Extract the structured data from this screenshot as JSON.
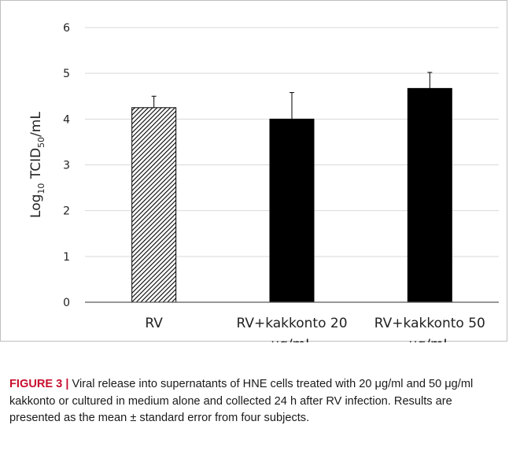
{
  "chart_data": {
    "type": "bar",
    "categories": [
      [
        "RV"
      ],
      [
        "RV+kakkonto 20",
        "μg/mL"
      ],
      [
        "RV+kakkonto 50",
        "μg/mL"
      ]
    ],
    "values": [
      4.25,
      4.0,
      4.67
    ],
    "error": [
      0.25,
      0.58,
      0.35
    ],
    "patterns": [
      "hatched",
      "solid",
      "solid"
    ],
    "ylim": [
      0,
      6
    ],
    "yticks": [
      0,
      1,
      2,
      3,
      4,
      5,
      6
    ],
    "ylabel": {
      "prefix": "Log",
      "sub1": "10",
      "mid": " TCID",
      "sub2": "50",
      "suffix": "/mL"
    },
    "grid": true,
    "colors": {
      "bar": "#000000",
      "grid": "#d9d9d9",
      "axis": "#595959"
    }
  },
  "caption": {
    "label": "FIGURE 3 |",
    "text": " Viral release into supernatants of HNE cells treated with 20 μg/ml and 50 μg/ml kakkonto or cultured in medium alone and collected 24 h after RV infection. Results are presented as the mean ± standard error from four subjects."
  }
}
